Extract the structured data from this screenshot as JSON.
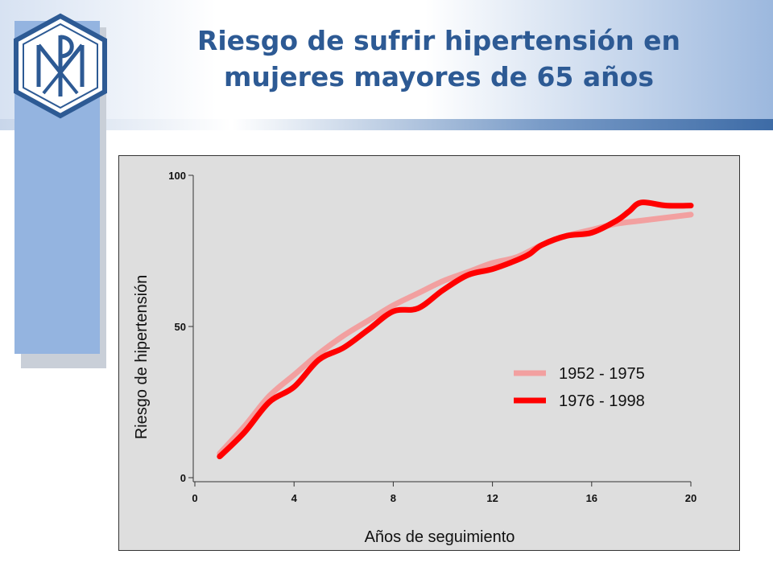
{
  "slide": {
    "title": "Riesgo de sufrir hipertensión en mujeres mayores de 65 años",
    "logo_icon": "chi-rho-monogram-icon",
    "colors": {
      "title": "#2d5a94",
      "panel": "#94b4e0",
      "logo": "#2d5a94"
    }
  },
  "chart_data": {
    "type": "line",
    "title": "",
    "xlabel": "Años de seguimiento",
    "ylabel": "Riesgo de hipertensión",
    "xlim": [
      0,
      20
    ],
    "ylim": [
      0,
      100
    ],
    "x_ticks": [
      "0",
      "4",
      "8",
      "12",
      "16",
      "20"
    ],
    "y_ticks": [
      "0",
      "50",
      "100"
    ],
    "grid": false,
    "legend_position": "right",
    "series": [
      {
        "name": "1952 - 1975",
        "color": "#f2a0a0",
        "x": [
          1,
          2,
          3,
          4,
          5,
          6,
          7,
          8,
          9,
          10,
          11,
          12,
          13,
          14,
          15,
          16,
          17,
          18,
          19,
          20
        ],
        "y": [
          8,
          17,
          27,
          34,
          41,
          47,
          52,
          57,
          61,
          65,
          68,
          71,
          73,
          77,
          80,
          82,
          84,
          85,
          86,
          87
        ]
      },
      {
        "name": "1976 - 1998",
        "color": "#ff0000",
        "x": [
          1,
          2,
          3,
          4,
          5,
          6,
          7,
          8,
          9,
          10,
          11,
          12,
          13,
          13.5,
          14,
          15,
          16,
          17,
          17.5,
          18,
          19,
          20
        ],
        "y": [
          7,
          15,
          25,
          30,
          39,
          43,
          49,
          55,
          56,
          62,
          67,
          69,
          72,
          74,
          77,
          80,
          81,
          85,
          88,
          91,
          90,
          90
        ]
      }
    ]
  }
}
